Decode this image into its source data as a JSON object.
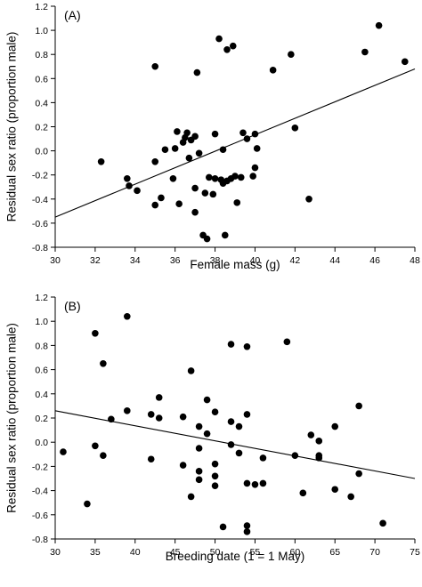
{
  "chart_data": [
    {
      "type": "scatter",
      "panel_label": "(A)",
      "xlabel": "Female mass (g)",
      "ylabel": "Residual sex ratio (proportion male)",
      "xlim": [
        30,
        48
      ],
      "ylim": [
        -0.8,
        1.2
      ],
      "xticks": [
        "30",
        "32",
        "34",
        "36",
        "38",
        "40",
        "42",
        "44",
        "46",
        "48"
      ],
      "yticks": [
        "-0.8",
        "-0.6",
        "-0.4",
        "-0.2",
        "0.0",
        "0.2",
        "0.4",
        "0.6",
        "0.8",
        "1.0",
        "1.2"
      ],
      "grid": false,
      "trend_line": {
        "x": [
          30,
          48
        ],
        "y": [
          -0.55,
          0.68
        ]
      },
      "points": [
        {
          "x": 32.3,
          "y": -0.09
        },
        {
          "x": 33.6,
          "y": -0.23
        },
        {
          "x": 33.7,
          "y": -0.29
        },
        {
          "x": 34.1,
          "y": -0.33
        },
        {
          "x": 35.0,
          "y": 0.7
        },
        {
          "x": 35.0,
          "y": -0.09
        },
        {
          "x": 35.0,
          "y": -0.45
        },
        {
          "x": 35.3,
          "y": -0.39
        },
        {
          "x": 35.5,
          "y": 0.01
        },
        {
          "x": 35.9,
          "y": -0.23
        },
        {
          "x": 36.0,
          "y": 0.02
        },
        {
          "x": 36.1,
          "y": 0.16
        },
        {
          "x": 36.2,
          "y": -0.44
        },
        {
          "x": 36.4,
          "y": 0.07
        },
        {
          "x": 36.5,
          "y": 0.11
        },
        {
          "x": 36.6,
          "y": 0.15
        },
        {
          "x": 36.7,
          "y": -0.06
        },
        {
          "x": 36.8,
          "y": 0.09
        },
        {
          "x": 37.0,
          "y": 0.12
        },
        {
          "x": 37.0,
          "y": -0.51
        },
        {
          "x": 37.0,
          "y": -0.31
        },
        {
          "x": 37.1,
          "y": 0.65
        },
        {
          "x": 37.2,
          "y": -0.02
        },
        {
          "x": 37.4,
          "y": -0.7
        },
        {
          "x": 37.5,
          "y": -0.35
        },
        {
          "x": 37.6,
          "y": -0.73
        },
        {
          "x": 37.7,
          "y": -0.22
        },
        {
          "x": 37.9,
          "y": -0.36
        },
        {
          "x": 38.0,
          "y": 0.14
        },
        {
          "x": 38.0,
          "y": -0.23
        },
        {
          "x": 38.2,
          "y": 0.93
        },
        {
          "x": 38.3,
          "y": -0.24
        },
        {
          "x": 38.4,
          "y": 0.01
        },
        {
          "x": 38.4,
          "y": -0.27
        },
        {
          "x": 38.5,
          "y": -0.7
        },
        {
          "x": 38.6,
          "y": 0.84
        },
        {
          "x": 38.6,
          "y": -0.25
        },
        {
          "x": 38.8,
          "y": -0.23
        },
        {
          "x": 38.9,
          "y": 0.87
        },
        {
          "x": 39.0,
          "y": -0.21
        },
        {
          "x": 39.1,
          "y": -0.43
        },
        {
          "x": 39.3,
          "y": -0.22
        },
        {
          "x": 39.4,
          "y": 0.15
        },
        {
          "x": 39.6,
          "y": 0.1
        },
        {
          "x": 39.9,
          "y": -0.21
        },
        {
          "x": 40.0,
          "y": 0.14
        },
        {
          "x": 40.0,
          "y": -0.14
        },
        {
          "x": 40.1,
          "y": 0.02
        },
        {
          "x": 40.9,
          "y": 0.67
        },
        {
          "x": 41.8,
          "y": 0.8
        },
        {
          "x": 42.0,
          "y": 0.19
        },
        {
          "x": 42.7,
          "y": -0.4
        },
        {
          "x": 45.5,
          "y": 0.82
        },
        {
          "x": 46.2,
          "y": 1.04
        },
        {
          "x": 47.5,
          "y": 0.74
        }
      ]
    },
    {
      "type": "scatter",
      "panel_label": "(B)",
      "xlabel": "Breeding date (1 = 1 May)",
      "ylabel": "Residual sex ratio (proportion male)",
      "xlim": [
        30,
        75
      ],
      "ylim": [
        -0.8,
        1.2
      ],
      "xticks": [
        "30",
        "35",
        "40",
        "45",
        "50",
        "55",
        "60",
        "65",
        "70",
        "75"
      ],
      "yticks": [
        "-0.8",
        "-0.6",
        "-0.4",
        "-0.2",
        "0.0",
        "0.2",
        "0.4",
        "0.6",
        "0.8",
        "1.0",
        "1.2"
      ],
      "grid": false,
      "trend_line": {
        "x": [
          30,
          75
        ],
        "y": [
          0.26,
          -0.3
        ]
      },
      "points": [
        {
          "x": 31,
          "y": -0.08
        },
        {
          "x": 34,
          "y": -0.51
        },
        {
          "x": 35,
          "y": 0.9
        },
        {
          "x": 35,
          "y": -0.03
        },
        {
          "x": 36,
          "y": 0.65
        },
        {
          "x": 36,
          "y": -0.11
        },
        {
          "x": 37,
          "y": 0.19
        },
        {
          "x": 39,
          "y": 1.04
        },
        {
          "x": 39,
          "y": 0.26
        },
        {
          "x": 42,
          "y": 0.23
        },
        {
          "x": 42,
          "y": -0.14
        },
        {
          "x": 43,
          "y": 0.37
        },
        {
          "x": 43,
          "y": 0.2
        },
        {
          "x": 46,
          "y": 0.21
        },
        {
          "x": 46,
          "y": -0.19
        },
        {
          "x": 47,
          "y": 0.59
        },
        {
          "x": 47,
          "y": -0.45
        },
        {
          "x": 48,
          "y": 0.13
        },
        {
          "x": 48,
          "y": -0.05
        },
        {
          "x": 48,
          "y": -0.24
        },
        {
          "x": 48,
          "y": -0.31
        },
        {
          "x": 49,
          "y": 0.35
        },
        {
          "x": 49,
          "y": 0.07
        },
        {
          "x": 50,
          "y": 0.25
        },
        {
          "x": 50,
          "y": -0.18
        },
        {
          "x": 50,
          "y": -0.28
        },
        {
          "x": 50,
          "y": -0.36
        },
        {
          "x": 51,
          "y": -0.7
        },
        {
          "x": 52,
          "y": 0.81
        },
        {
          "x": 52,
          "y": 0.17
        },
        {
          "x": 52,
          "y": -0.02
        },
        {
          "x": 53,
          "y": 0.13
        },
        {
          "x": 53,
          "y": -0.09
        },
        {
          "x": 54,
          "y": 0.79
        },
        {
          "x": 54,
          "y": 0.23
        },
        {
          "x": 54,
          "y": -0.34
        },
        {
          "x": 54,
          "y": -0.69
        },
        {
          "x": 54,
          "y": -0.74
        },
        {
          "x": 55,
          "y": -0.35
        },
        {
          "x": 56,
          "y": -0.13
        },
        {
          "x": 56,
          "y": -0.34
        },
        {
          "x": 59,
          "y": 0.83
        },
        {
          "x": 60,
          "y": -0.11
        },
        {
          "x": 61,
          "y": -0.42
        },
        {
          "x": 62,
          "y": 0.06
        },
        {
          "x": 63,
          "y": 0.01
        },
        {
          "x": 63,
          "y": -0.11
        },
        {
          "x": 63,
          "y": -0.13
        },
        {
          "x": 65,
          "y": 0.13
        },
        {
          "x": 65,
          "y": -0.39
        },
        {
          "x": 67,
          "y": -0.45
        },
        {
          "x": 68,
          "y": 0.3
        },
        {
          "x": 68,
          "y": -0.26
        },
        {
          "x": 71,
          "y": -0.67
        }
      ]
    }
  ]
}
